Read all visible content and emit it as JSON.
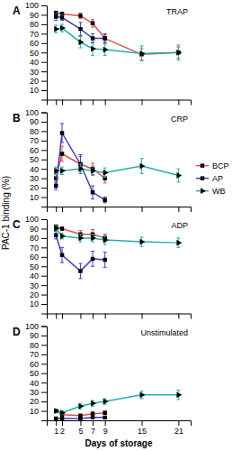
{
  "chart_data": [
    {
      "type": "line",
      "title": "TRAP",
      "annotations": [
        "A"
      ],
      "ylabel": "PAC-1 binding (%)",
      "x": [
        1,
        2,
        5,
        7,
        9,
        15,
        21
      ],
      "series": [
        {
          "name": "BCP",
          "color": "#e05050",
          "marker": "square",
          "values": [
            92,
            91,
            89,
            81,
            65,
            48,
            50
          ],
          "errors": [
            2,
            2,
            3,
            4,
            4,
            6,
            6
          ]
        },
        {
          "name": "AP",
          "color": "#4040bb",
          "marker": "square",
          "values": [
            88,
            87,
            75,
            65,
            65,
            null,
            null
          ],
          "errors": [
            4,
            3,
            7,
            5,
            5,
            null,
            null
          ]
        },
        {
          "name": "WB",
          "color": "#20b0aa",
          "marker": "triangle-right",
          "values": [
            75,
            76,
            61,
            54,
            53,
            49,
            50
          ],
          "errors": [
            4,
            4,
            6,
            7,
            6,
            8,
            8
          ]
        }
      ],
      "xlim": [
        -0.5,
        23
      ],
      "ylim": [
        0,
        100
      ],
      "xticks": [
        1,
        2,
        5,
        7,
        9,
        15,
        21
      ],
      "yticks": [
        10,
        20,
        30,
        40,
        50,
        60,
        70,
        80,
        90,
        100
      ],
      "tick_labels": "y",
      "grid": false
    },
    {
      "type": "line",
      "title": "CRP",
      "annotations": [
        "B"
      ],
      "x": [
        1,
        2,
        5,
        7,
        9,
        15,
        21
      ],
      "series": [
        {
          "name": "BCP",
          "color": "#e05050",
          "marker": "square",
          "values": [
            30,
            56,
            45,
            40,
            30,
            null,
            null
          ],
          "errors": [
            5,
            8,
            8,
            6,
            5,
            null,
            null
          ]
        },
        {
          "name": "AP",
          "color": "#4040bb",
          "marker": "square",
          "values": [
            22,
            78,
            45,
            15,
            7,
            null,
            null
          ],
          "errors": [
            4,
            10,
            10,
            7,
            3,
            null,
            null
          ]
        },
        {
          "name": "WB",
          "color": "#20b0aa",
          "marker": "triangle-right",
          "values": [
            38,
            38,
            40,
            38,
            36,
            43,
            33
          ],
          "errors": [
            4,
            4,
            5,
            5,
            5,
            8,
            7
          ]
        }
      ],
      "xlim": [
        -0.5,
        23
      ],
      "ylim": [
        0,
        100
      ],
      "xticks": [
        1,
        2,
        5,
        7,
        9,
        15,
        21
      ],
      "yticks": [
        10,
        20,
        30,
        40,
        50,
        60,
        70,
        80,
        90,
        100
      ],
      "tick_labels": "y",
      "grid": false,
      "legend": "right"
    },
    {
      "type": "line",
      "title": "ADP",
      "annotations": [
        "C"
      ],
      "x": [
        1,
        2,
        5,
        7,
        9,
        15,
        21
      ],
      "series": [
        {
          "name": "BCP",
          "color": "#e05050",
          "marker": "square",
          "values": [
            92,
            90,
            84,
            84,
            80,
            null,
            null
          ],
          "errors": [
            2,
            2,
            4,
            5,
            4,
            null,
            null
          ]
        },
        {
          "name": "AP",
          "color": "#4040bb",
          "marker": "square",
          "values": [
            83,
            62,
            45,
            58,
            57,
            null,
            null
          ],
          "errors": [
            4,
            8,
            8,
            8,
            8,
            null,
            null
          ]
        },
        {
          "name": "WB",
          "color": "#20b0aa",
          "marker": "triangle-right",
          "values": [
            90,
            82,
            80,
            80,
            78,
            76,
            75
          ],
          "errors": [
            3,
            3,
            4,
            4,
            5,
            5,
            5
          ]
        }
      ],
      "xlim": [
        -0.5,
        23
      ],
      "ylim": [
        0,
        100
      ],
      "xticks": [
        1,
        2,
        5,
        7,
        9,
        15,
        21
      ],
      "yticks": [
        10,
        20,
        30,
        40,
        50,
        60,
        70,
        80,
        90,
        100
      ],
      "tick_labels": "y",
      "grid": false
    },
    {
      "type": "line",
      "title": "Unstimulated",
      "annotations": [
        "D"
      ],
      "xlabel": "Days of storage",
      "x": [
        1,
        2,
        5,
        7,
        9,
        15,
        21
      ],
      "series": [
        {
          "name": "BCP",
          "color": "#e05050",
          "marker": "square",
          "values": [
            10,
            6,
            5,
            7,
            8,
            null,
            null
          ],
          "errors": [
            2,
            1,
            1,
            2,
            2,
            null,
            null
          ]
        },
        {
          "name": "AP",
          "color": "#4040bb",
          "marker": "square",
          "values": [
            2,
            2,
            2,
            3,
            3,
            null,
            null
          ],
          "errors": [
            0.5,
            0.5,
            0.5,
            1,
            1,
            null,
            null
          ]
        },
        {
          "name": "WB",
          "color": "#20b0aa",
          "marker": "triangle-right",
          "values": [
            10,
            8,
            15,
            18,
            20,
            27,
            27
          ],
          "errors": [
            2,
            2,
            3,
            3,
            3,
            4,
            5
          ]
        }
      ],
      "xlim": [
        -0.5,
        23
      ],
      "ylim": [
        0,
        100
      ],
      "xticks": [
        1,
        2,
        5,
        7,
        9,
        15,
        21
      ],
      "yticks": [
        10,
        20,
        30,
        40,
        50,
        60,
        70,
        80,
        90,
        100
      ],
      "grid": false
    }
  ]
}
